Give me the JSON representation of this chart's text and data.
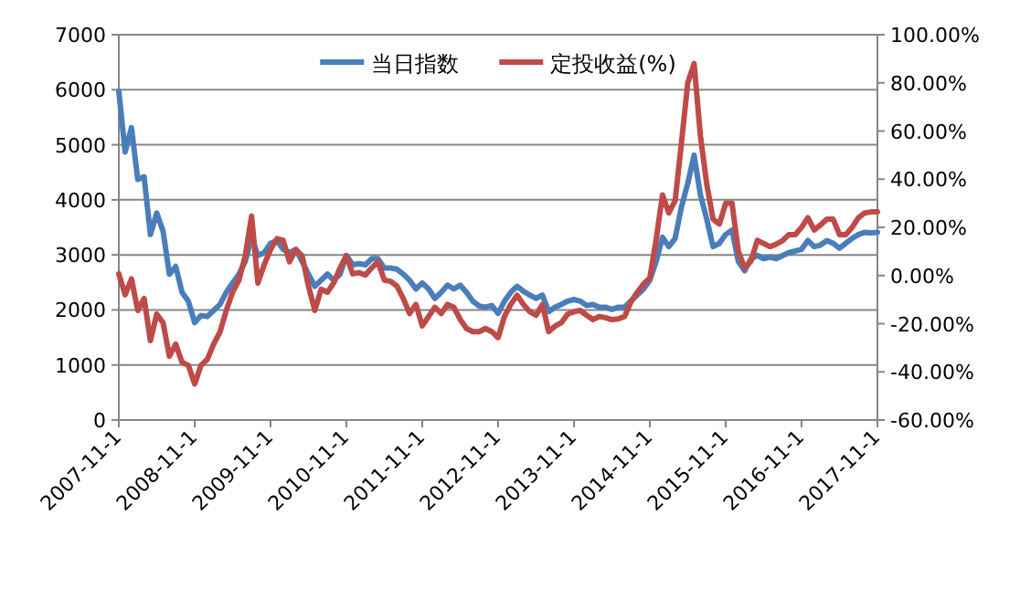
{
  "chart_data": {
    "type": "line",
    "categories": [
      "2007-11-1",
      null,
      null,
      null,
      null,
      null,
      null,
      null,
      null,
      null,
      null,
      null,
      "2008-11-1",
      null,
      null,
      null,
      null,
      null,
      null,
      null,
      null,
      null,
      null,
      null,
      "2009-11-1",
      null,
      null,
      null,
      null,
      null,
      null,
      null,
      null,
      null,
      null,
      null,
      "2010-11-1",
      null,
      null,
      null,
      null,
      null,
      null,
      null,
      null,
      null,
      null,
      null,
      "2011-11-1",
      null,
      null,
      null,
      null,
      null,
      null,
      null,
      null,
      null,
      null,
      null,
      "2012-11-1",
      null,
      null,
      null,
      null,
      null,
      null,
      null,
      null,
      null,
      null,
      null,
      "2013-11-1",
      null,
      null,
      null,
      null,
      null,
      null,
      null,
      null,
      null,
      null,
      null,
      "2014-11-1",
      null,
      null,
      null,
      null,
      null,
      null,
      null,
      null,
      null,
      null,
      null,
      "2015-11-1",
      null,
      null,
      null,
      null,
      null,
      null,
      null,
      null,
      null,
      null,
      null,
      "2016-11-1",
      null,
      null,
      null,
      null,
      null,
      null,
      null,
      null,
      null,
      null,
      null,
      "2017-11-1"
    ],
    "series": [
      {
        "name": "当日指数",
        "color": "#4a7ebb",
        "values": [
          5970,
          4870,
          5310,
          4370,
          4420,
          3370,
          3760,
          3430,
          2650,
          2790,
          2320,
          2160,
          1770,
          1900,
          1880,
          1990,
          2100,
          2320,
          2490,
          2650,
          2880,
          3320,
          2990,
          3040,
          3210,
          3260,
          3100,
          3040,
          3100,
          2880,
          2650,
          2430,
          2540,
          2650,
          2540,
          2650,
          2990,
          2820,
          2840,
          2820,
          2930,
          2930,
          2760,
          2760,
          2740,
          2650,
          2540,
          2380,
          2490,
          2380,
          2210,
          2320,
          2450,
          2380,
          2450,
          2320,
          2160,
          2070,
          2050,
          2080,
          1940,
          2160,
          2320,
          2430,
          2340,
          2270,
          2210,
          2270,
          1970,
          2050,
          2100,
          2160,
          2190,
          2160,
          2080,
          2100,
          2050,
          2050,
          2010,
          2050,
          2050,
          2160,
          2270,
          2380,
          2540,
          2880,
          3320,
          3150,
          3300,
          3870,
          4300,
          4810,
          4090,
          3650,
          3150,
          3210,
          3370,
          3450,
          2880,
          2710,
          2930,
          2990,
          2930,
          2960,
          2930,
          2990,
          3040,
          3070,
          3100,
          3260,
          3150,
          3180,
          3260,
          3210,
          3120,
          3210,
          3300,
          3370,
          3410,
          3400,
          3410
        ]
      },
      {
        "name": "定投收益(%)",
        "color": "#be4b48",
        "axis": "y2",
        "values": [
          0.7,
          -8,
          -1.4,
          -14.5,
          -9.5,
          -27,
          -16,
          -19.6,
          -33.5,
          -28.5,
          -36,
          -37.3,
          -45,
          -37.3,
          -34.8,
          -28.5,
          -23.5,
          -14.5,
          -6.9,
          -1.9,
          8.2,
          24.7,
          -3.1,
          4.5,
          10.8,
          15.3,
          14.6,
          5.7,
          10.8,
          8.2,
          -4.4,
          -14.5,
          -5.7,
          -6.9,
          -3.1,
          3.2,
          8.2,
          0.7,
          1.2,
          0.2,
          3.2,
          5.7,
          -1.9,
          -2.4,
          -4.4,
          -9.5,
          -15.8,
          -12,
          -20.9,
          -17,
          -13.2,
          -15.8,
          -12,
          -13.2,
          -18.2,
          -22,
          -23.3,
          -23.3,
          -22,
          -23.3,
          -25.8,
          -17,
          -12,
          -8.2,
          -12,
          -15,
          -16.5,
          -12,
          -23.3,
          -21,
          -19.6,
          -16,
          -15,
          -14.5,
          -16.5,
          -18.3,
          -17,
          -17.5,
          -18.3,
          -18,
          -17,
          -11,
          -7,
          -3.5,
          -1,
          15,
          33.5,
          26,
          31,
          55,
          80,
          88,
          58,
          38,
          23.4,
          21.4,
          30,
          30,
          10,
          3.2,
          6,
          14.6,
          13.3,
          12,
          13,
          14.5,
          17,
          17,
          20,
          24,
          18.9,
          21,
          23.4,
          23.4,
          17,
          17,
          20,
          24,
          26,
          26.4,
          26.4
        ]
      }
    ],
    "ylim": [
      0,
      7000
    ],
    "yticks": [
      0,
      1000,
      2000,
      3000,
      4000,
      5000,
      6000,
      7000
    ],
    "y2lim": [
      -60,
      100
    ],
    "y2ticks": [
      {
        "value": -60,
        "label": "-60.00%"
      },
      {
        "value": -40,
        "label": "-40.00%"
      },
      {
        "value": -20,
        "label": "-20.00%"
      },
      {
        "value": 0,
        "label": "0.00%"
      },
      {
        "value": 20,
        "label": "20.00%"
      },
      {
        "value": 40,
        "label": "40.00%"
      },
      {
        "value": 60,
        "label": "60.00%"
      },
      {
        "value": 80,
        "label": "80.00%"
      },
      {
        "value": 100,
        "label": "100.00%"
      }
    ],
    "grid": "y",
    "legend": "top",
    "marker": "none",
    "line_style": "solid"
  }
}
